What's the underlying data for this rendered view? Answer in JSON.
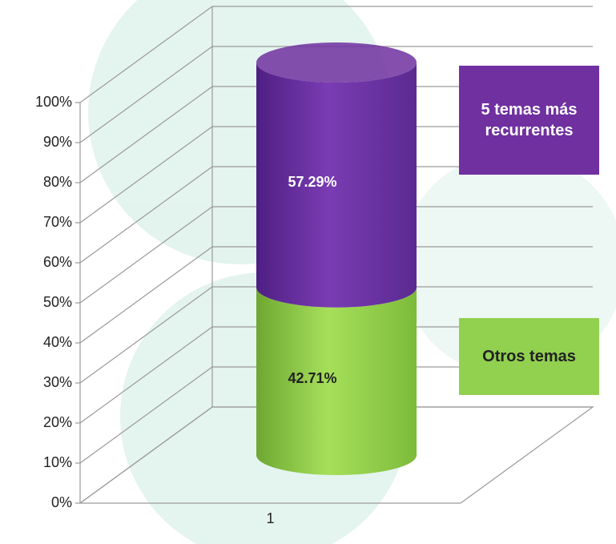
{
  "chart_data": {
    "type": "bar3d",
    "stacked": true,
    "categories": [
      "1"
    ],
    "series": [
      {
        "name": "Otros temas",
        "color": "#92d050",
        "values": [
          42.71
        ],
        "value_labels": [
          "42.71%"
        ]
      },
      {
        "name": "5 temas más recurrentes",
        "color": "#7030a0",
        "values": [
          57.29
        ],
        "value_labels": [
          "57.29%"
        ]
      }
    ],
    "ylim": [
      0,
      100
    ],
    "yticks": [
      {
        "value": 0,
        "label": "0%"
      },
      {
        "value": 10,
        "label": "10%"
      },
      {
        "value": 20,
        "label": "20%"
      },
      {
        "value": 30,
        "label": "30%"
      },
      {
        "value": 40,
        "label": "40%"
      },
      {
        "value": 50,
        "label": "50%"
      },
      {
        "value": 60,
        "label": "60%"
      },
      {
        "value": 70,
        "label": "70%"
      },
      {
        "value": 80,
        "label": "80%"
      },
      {
        "value": 90,
        "label": "90%"
      },
      {
        "value": 100,
        "label": "100%"
      }
    ],
    "grid": true
  }
}
